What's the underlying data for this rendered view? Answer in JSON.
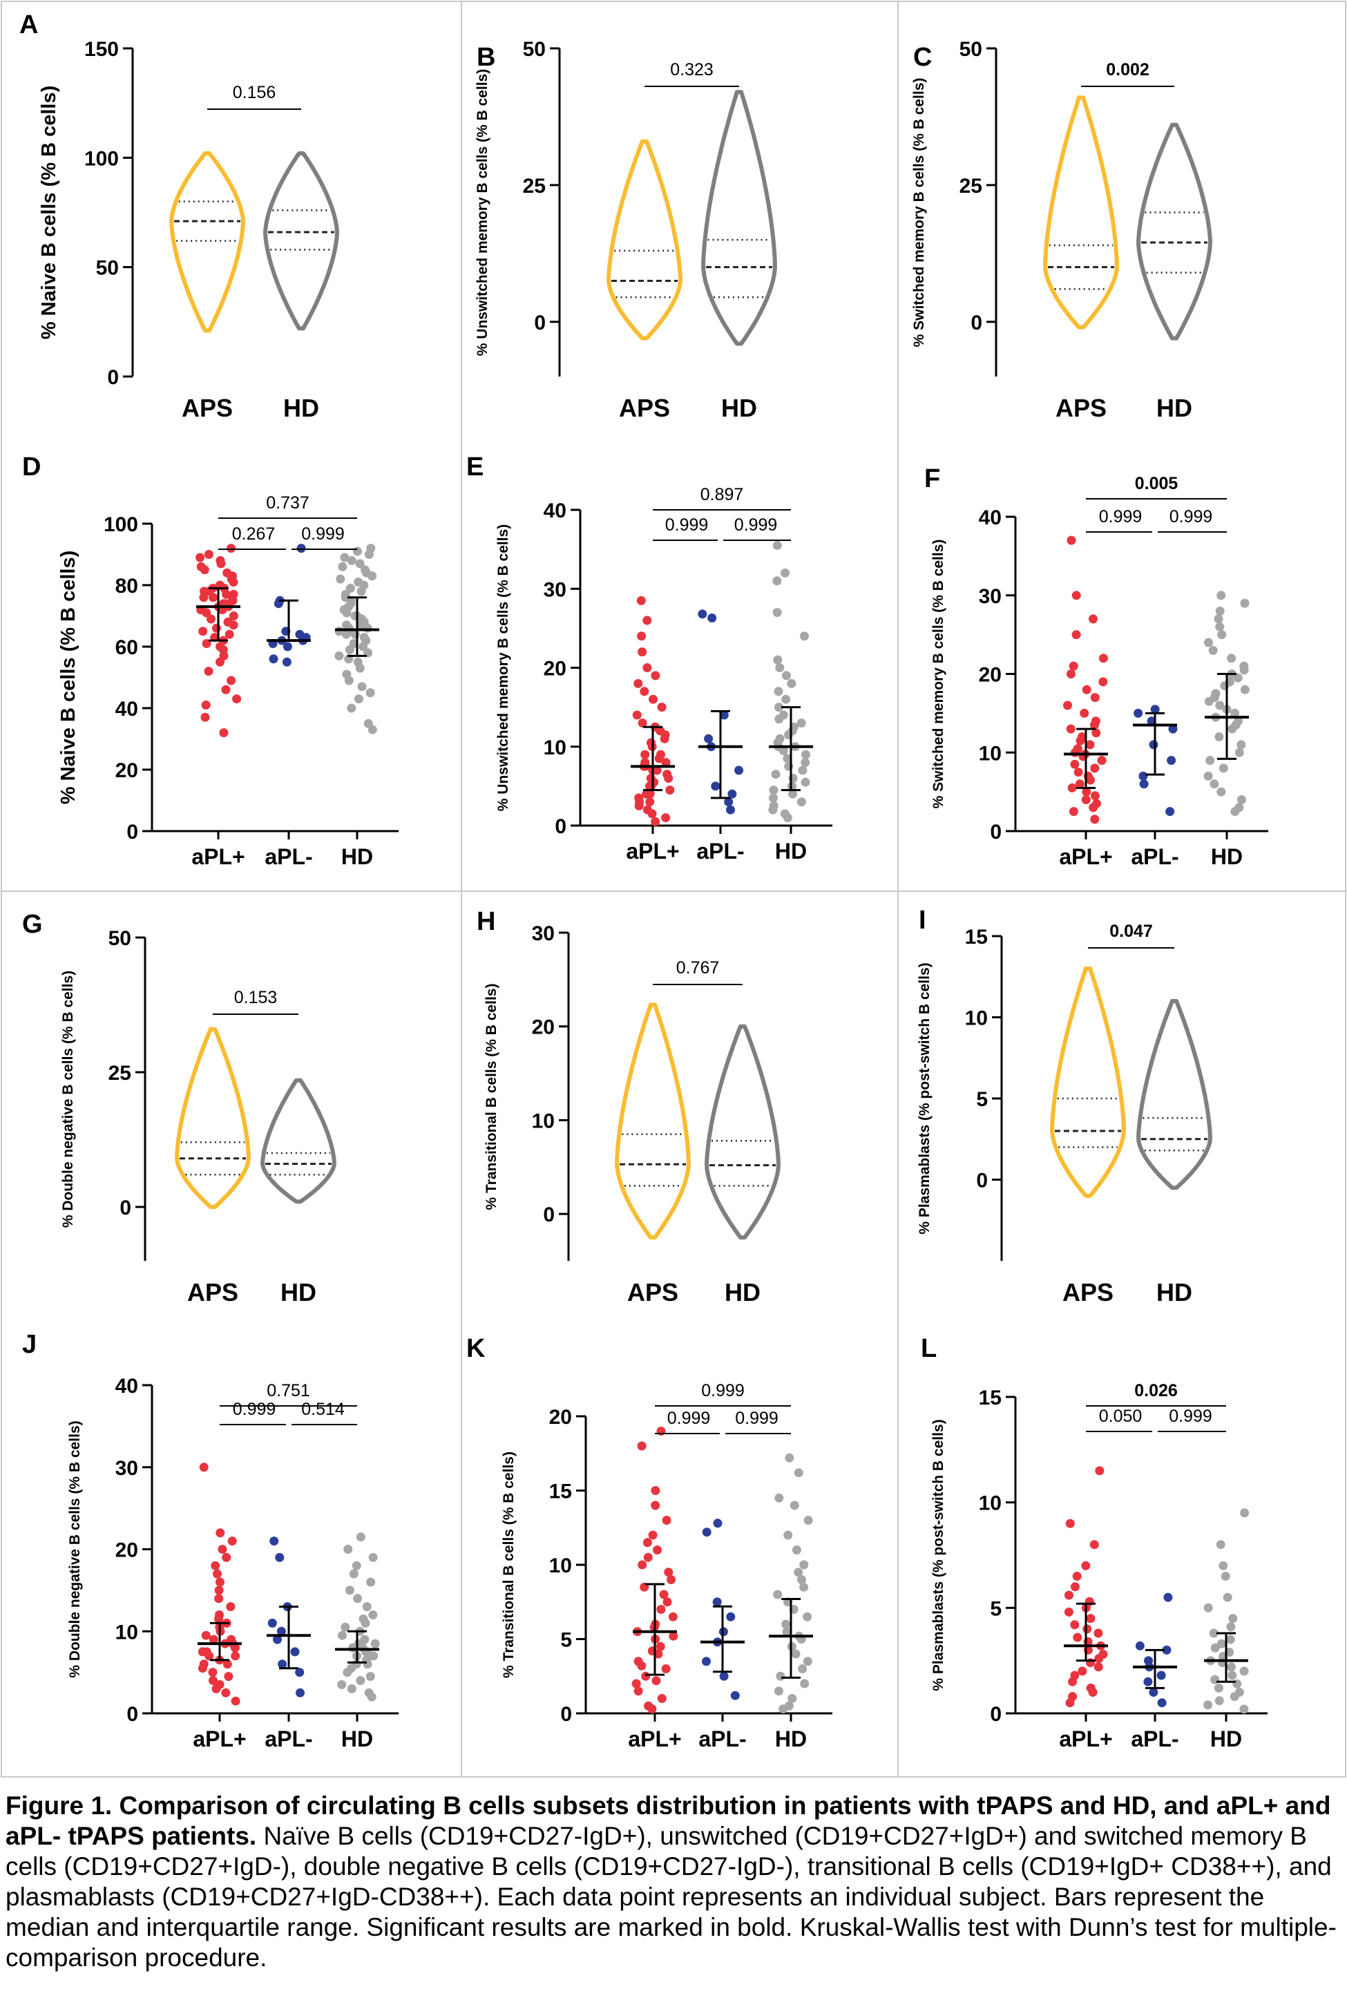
{
  "colors": {
    "aps": "#F9BC31",
    "hd_violin": "#7F7F7F",
    "apl_pos": "#E8343E",
    "apl_neg": "#2B3F9A",
    "hd_dots": "#A6A6A6"
  },
  "chart_data": [
    {
      "letter": "A",
      "type": "violin",
      "ylabel": "% Naive B cells (% B cells)",
      "ylim": [
        0,
        150
      ],
      "yticks": [
        0,
        50,
        100,
        150
      ],
      "categories": [
        "APS",
        "HD"
      ],
      "series": [
        {
          "name": "APS",
          "min": 21,
          "max": 102,
          "q1": 62,
          "median": 71,
          "q3": 80
        },
        {
          "name": "HD",
          "min": 22,
          "max": 102,
          "q1": 58,
          "median": 66,
          "q3": 76
        }
      ],
      "comparisons": [
        {
          "label": "0.156",
          "bold": false
        }
      ]
    },
    {
      "letter": "B",
      "type": "violin",
      "ylabel": "% Unswitched memory B cells (% B cells)",
      "ylim": [
        -10,
        50
      ],
      "yticks": [
        0,
        25,
        50
      ],
      "categories": [
        "APS",
        "HD"
      ],
      "series": [
        {
          "name": "APS",
          "min": -3,
          "max": 33,
          "q1": 4.5,
          "median": 7.5,
          "q3": 13
        },
        {
          "name": "HD",
          "min": -4,
          "max": 42,
          "q1": 4.5,
          "median": 10,
          "q3": 15
        }
      ],
      "comparisons": [
        {
          "label": "0.323",
          "bold": false
        }
      ]
    },
    {
      "letter": "C",
      "type": "violin",
      "ylabel": "% Switched memory B cells (% B cells)",
      "ylim": [
        -10,
        50
      ],
      "yticks": [
        0,
        25,
        50
      ],
      "categories": [
        "APS",
        "HD"
      ],
      "series": [
        {
          "name": "APS",
          "min": -1,
          "max": 41,
          "q1": 6,
          "median": 10,
          "q3": 14
        },
        {
          "name": "HD",
          "min": -3,
          "max": 36,
          "q1": 9,
          "median": 14.5,
          "q3": 20
        }
      ],
      "comparisons": [
        {
          "label": "0.002",
          "bold": true
        }
      ]
    },
    {
      "letter": "D",
      "type": "scatter",
      "ylabel": "% Naive B cells (% B cells)",
      "ylim": [
        0,
        100
      ],
      "yticks": [
        0,
        20,
        40,
        60,
        80,
        100
      ],
      "categories": [
        "aPL+",
        "aPL-",
        "HD"
      ],
      "groups": [
        {
          "name": "aPL+",
          "median": 73,
          "q1": 62,
          "q3": 79,
          "values": [
            32,
            37,
            41,
            43,
            46,
            49,
            52,
            55,
            57,
            59,
            60,
            61,
            62,
            63,
            64,
            65,
            66,
            67,
            68,
            69,
            70,
            71,
            72,
            72,
            73,
            73,
            74,
            74,
            75,
            75,
            76,
            76,
            77,
            77,
            78,
            78,
            79,
            79,
            80,
            81,
            82,
            83,
            84,
            85,
            86,
            87,
            88,
            89,
            90,
            92
          ]
        },
        {
          "name": "aPL-",
          "median": 62,
          "q1": 62,
          "q3": 75,
          "values": [
            55,
            56,
            60,
            61,
            62,
            62,
            63,
            64,
            65,
            74,
            75,
            92
          ]
        },
        {
          "name": "HD",
          "median": 65.5,
          "q1": 57,
          "q3": 76,
          "values": [
            33,
            35,
            40,
            43,
            45,
            47,
            49,
            51,
            53,
            55,
            56,
            57,
            58,
            59,
            60,
            61,
            62,
            63,
            64,
            64,
            65,
            65,
            66,
            66,
            67,
            67,
            68,
            69,
            70,
            70,
            71,
            72,
            73,
            74,
            75,
            76,
            77,
            78,
            79,
            80,
            81,
            82,
            83,
            84,
            85,
            86,
            87,
            88,
            89,
            90,
            91,
            92
          ]
        }
      ],
      "comparisons": [
        {
          "label": "0.267",
          "bold": false
        },
        {
          "label": "0.999",
          "bold": false
        },
        {
          "label": "0.737",
          "bold": false
        }
      ]
    },
    {
      "letter": "E",
      "type": "scatter",
      "ylabel": "% Unswitched memory B cells (% B cells)",
      "ylim": [
        0,
        40
      ],
      "yticks": [
        0,
        10,
        20,
        30,
        40
      ],
      "categories": [
        "aPL+",
        "aPL-",
        "HD"
      ],
      "groups": [
        {
          "name": "aPL+",
          "median": 7.5,
          "q1": 4.5,
          "q3": 12.5,
          "values": [
            0.5,
            1,
            1.5,
            2,
            2.5,
            3,
            3,
            3.5,
            4,
            4,
            4.5,
            5,
            5,
            5.5,
            6,
            6,
            6.5,
            7,
            7,
            7.5,
            7.5,
            8,
            8,
            8.5,
            9,
            9,
            10,
            10.5,
            11,
            11.5,
            12,
            12.5,
            13,
            14,
            15,
            16,
            17,
            18,
            19,
            20,
            22,
            24,
            26,
            28.5
          ]
        },
        {
          "name": "aPL-",
          "median": 10,
          "q1": 3.5,
          "q3": 14.5,
          "values": [
            2,
            3,
            4,
            5,
            7,
            10,
            11,
            14,
            26.3,
            26.8
          ]
        },
        {
          "name": "HD",
          "median": 10,
          "q1": 4.5,
          "q3": 15,
          "values": [
            1,
            1.5,
            2,
            2.5,
            3,
            3.5,
            4,
            4.5,
            5,
            5.5,
            6,
            6.5,
            7,
            7.5,
            8,
            8.5,
            9,
            9.5,
            10,
            10,
            10.5,
            11,
            11.5,
            12,
            12.5,
            13,
            13.5,
            14,
            15,
            16,
            17,
            18,
            19,
            20,
            21,
            24,
            27,
            31,
            32,
            35.5
          ]
        }
      ],
      "comparisons": [
        {
          "label": "0.999",
          "bold": false
        },
        {
          "label": "0.999",
          "bold": false
        },
        {
          "label": "0.897",
          "bold": false
        }
      ]
    },
    {
      "letter": "F",
      "type": "scatter",
      "ylabel": "% Switched memory B cells (% B cells)",
      "ylim": [
        0,
        40
      ],
      "yticks": [
        0,
        10,
        20,
        30,
        40
      ],
      "categories": [
        "aPL+",
        "aPL-",
        "HD"
      ],
      "groups": [
        {
          "name": "aPL+",
          "median": 9.8,
          "q1": 5.5,
          "q3": 13,
          "values": [
            1.5,
            2.5,
            3,
            3.5,
            4,
            4.5,
            5,
            5.5,
            6,
            6.5,
            7,
            7.5,
            8,
            8.5,
            9,
            9.5,
            9.8,
            10,
            10.5,
            11,
            11.5,
            12,
            12.5,
            13,
            13.5,
            14,
            15,
            16,
            17,
            18,
            19,
            20,
            21,
            22,
            25,
            27,
            30,
            37
          ]
        },
        {
          "name": "aPL-",
          "median": 13.5,
          "q1": 7.2,
          "q3": 15,
          "values": [
            2.5,
            6,
            7,
            9,
            11,
            13,
            14,
            15,
            15.5
          ]
        },
        {
          "name": "HD",
          "median": 14.5,
          "q1": 9.2,
          "q3": 20,
          "values": [
            2.5,
            3,
            4,
            5,
            6,
            7,
            8,
            9,
            10,
            11,
            12,
            13,
            13.5,
            14,
            14.5,
            15,
            15.5,
            16,
            16.5,
            17,
            17.5,
            18,
            18.5,
            19,
            19.5,
            20,
            20.5,
            21,
            22,
            23,
            24,
            25,
            26,
            27,
            28,
            29,
            30
          ]
        }
      ],
      "comparisons": [
        {
          "label": "0.999",
          "bold": false
        },
        {
          "label": "0.999",
          "bold": false
        },
        {
          "label": "0.005",
          "bold": true
        }
      ]
    },
    {
      "letter": "G",
      "type": "violin",
      "ylabel": "% Double negative B cells (% B cells)",
      "ylim": [
        -10,
        50
      ],
      "yticks": [
        0,
        25,
        50
      ],
      "categories": [
        "APS",
        "HD"
      ],
      "series": [
        {
          "name": "APS",
          "min": 0,
          "max": 33,
          "q1": 6,
          "median": 9,
          "q3": 12
        },
        {
          "name": "HD",
          "min": 1,
          "max": 23.5,
          "q1": 6,
          "median": 8,
          "q3": 10
        }
      ],
      "comparisons": [
        {
          "label": "0.153",
          "bold": false
        }
      ]
    },
    {
      "letter": "H",
      "type": "violin",
      "ylabel": "% Transitional B cells (% B cells)",
      "ylim": [
        -5,
        30
      ],
      "yticks": [
        0,
        10,
        20,
        30
      ],
      "categories": [
        "APS",
        "HD"
      ],
      "series": [
        {
          "name": "APS",
          "min": -2.5,
          "max": 22.3,
          "q1": 3,
          "median": 5.3,
          "q3": 8.5
        },
        {
          "name": "HD",
          "min": -2.5,
          "max": 20,
          "q1": 3,
          "median": 5.2,
          "q3": 7.8
        }
      ],
      "comparisons": [
        {
          "label": "0.767",
          "bold": false
        }
      ]
    },
    {
      "letter": "I",
      "type": "violin",
      "ylabel": "% Plasmablasts (% post-switch B cells)",
      "ylim": [
        -5,
        15
      ],
      "yticks": [
        0,
        5,
        10,
        15
      ],
      "categories": [
        "APS",
        "HD"
      ],
      "series": [
        {
          "name": "APS",
          "min": -1,
          "max": 13,
          "q1": 2,
          "median": 3,
          "q3": 5
        },
        {
          "name": "HD",
          "min": -0.5,
          "max": 11,
          "q1": 1.8,
          "median": 2.5,
          "q3": 3.8
        }
      ],
      "comparisons": [
        {
          "label": "0.047",
          "bold": true
        }
      ]
    },
    {
      "letter": "J",
      "type": "scatter",
      "ylabel": "% Double negative B cells (% B cells)",
      "ylim": [
        0,
        40
      ],
      "yticks": [
        0,
        10,
        20,
        30,
        40
      ],
      "categories": [
        "aPL+",
        "aPL-",
        "HD"
      ],
      "groups": [
        {
          "name": "aPL+",
          "median": 8.5,
          "q1": 6.5,
          "q3": 11,
          "values": [
            1.5,
            2.5,
            3,
            3.5,
            4,
            4.5,
            5,
            5.5,
            6,
            6,
            6.5,
            7,
            7,
            7.5,
            7.5,
            8,
            8,
            8.5,
            8.5,
            9,
            9,
            9.5,
            10,
            10.5,
            11,
            11.5,
            12,
            13,
            14,
            15,
            16,
            17,
            18,
            19,
            20,
            21,
            22,
            30
          ]
        },
        {
          "name": "aPL-",
          "median": 9.5,
          "q1": 5.5,
          "q3": 13,
          "values": [
            2.5,
            5,
            6,
            7.5,
            9,
            10,
            11,
            13,
            19,
            21
          ]
        },
        {
          "name": "HD",
          "median": 7.8,
          "q1": 6.2,
          "q3": 10,
          "values": [
            2,
            2.5,
            3,
            3.5,
            4,
            4.5,
            5,
            5.5,
            6,
            6,
            6.5,
            7,
            7,
            7.5,
            7.5,
            8,
            8,
            8.5,
            8.5,
            9,
            9.5,
            10,
            10.5,
            11,
            11.5,
            12,
            13,
            14,
            15,
            16,
            17,
            18,
            19,
            20,
            21.5
          ]
        }
      ],
      "comparisons": [
        {
          "label": "0.999",
          "bold": false
        },
        {
          "label": "0.514",
          "bold": false
        },
        {
          "label": "0.751",
          "bold": false
        }
      ]
    },
    {
      "letter": "K",
      "type": "scatter",
      "ylabel": "% Transitional B cells (% B cells)",
      "ylim": [
        0,
        20
      ],
      "yticks": [
        0,
        5,
        10,
        15,
        20
      ],
      "categories": [
        "aPL+",
        "aPL-",
        "HD"
      ],
      "groups": [
        {
          "name": "aPL+",
          "median": 5.5,
          "q1": 2.6,
          "q3": 8.7,
          "values": [
            0.3,
            0.5,
            1,
            1.5,
            2,
            2.2,
            2.5,
            3,
            3.2,
            3.5,
            4,
            4.2,
            4.5,
            5,
            5.2,
            5.5,
            5.8,
            6,
            6.5,
            7,
            7.5,
            8,
            8.5,
            9,
            9.5,
            10,
            10.5,
            11,
            11.5,
            12,
            13,
            14,
            15,
            18,
            19
          ]
        },
        {
          "name": "aPL-",
          "median": 4.8,
          "q1": 2.8,
          "q3": 7.2,
          "values": [
            1.2,
            2.5,
            3.5,
            4.8,
            5.5,
            6.5,
            7.5,
            12.2,
            12.8
          ]
        },
        {
          "name": "HD",
          "median": 5.2,
          "q1": 2.4,
          "q3": 7.7,
          "values": [
            0.3,
            0.5,
            1,
            1.5,
            2,
            2.5,
            3,
            3.5,
            4,
            4.5,
            5,
            5.2,
            5.5,
            6,
            6.5,
            7,
            7.5,
            8,
            8.5,
            9,
            9.5,
            10,
            11,
            12,
            13,
            14,
            14.5,
            16.2,
            17.2
          ]
        }
      ],
      "comparisons": [
        {
          "label": "0.999",
          "bold": false
        },
        {
          "label": "0.999",
          "bold": false
        },
        {
          "label": "0.999",
          "bold": false
        }
      ]
    },
    {
      "letter": "L",
      "type": "scatter",
      "ylabel": "% Plasmablasts (% post-switch B cells)",
      "ylim": [
        0,
        15
      ],
      "yticks": [
        0,
        5,
        10,
        15
      ],
      "categories": [
        "aPL+",
        "aPL-",
        "HD"
      ],
      "groups": [
        {
          "name": "aPL+",
          "median": 3.2,
          "q1": 2.5,
          "q3": 5.2,
          "values": [
            0.5,
            0.8,
            1,
            1.2,
            1.5,
            1.8,
            2,
            2.2,
            2.4,
            2.6,
            2.8,
            3,
            3.2,
            3.4,
            3.6,
            3.8,
            4,
            4.2,
            4.5,
            4.8,
            5,
            5.3,
            5.6,
            6,
            6.5,
            7,
            8,
            9,
            11.5
          ]
        },
        {
          "name": "aPL-",
          "median": 2.2,
          "q1": 1.2,
          "q3": 3,
          "values": [
            0.5,
            1,
            1.5,
            1.8,
            2.2,
            2.5,
            3,
            3.2,
            5.5
          ]
        },
        {
          "name": "HD",
          "median": 2.5,
          "q1": 1.5,
          "q3": 3.8,
          "values": [
            0.2,
            0.4,
            0.6,
            0.8,
            1,
            1.2,
            1.4,
            1.6,
            1.8,
            2,
            2.2,
            2.4,
            2.5,
            2.7,
            2.9,
            3.1,
            3.3,
            3.5,
            3.8,
            4.1,
            4.5,
            5,
            5.5,
            6.5,
            7,
            8,
            9.5
          ]
        }
      ],
      "comparisons": [
        {
          "label": "0.050",
          "bold": false
        },
        {
          "label": "0.999",
          "bold": false
        },
        {
          "label": "0.026",
          "bold": true
        }
      ]
    }
  ],
  "caption": {
    "title": "Figure 1. Comparison of circulating B cells subsets distribution in patients with tPAPS and HD, and aPL+ and aPL- tPAPS patients.",
    "body": "Naïve B cells (CD19+CD27-IgD+), unswitched (CD19+CD27+IgD+) and switched memory B cells (CD19+CD27+IgD-), double negative B cells (CD19+CD27-IgD-), transitional B cells (CD19+IgD+ CD38++), and plasmablasts (CD19+CD27+IgD-CD38++). Each data point represents an individual subject. Bars represent the median and interquartile range. Significant results are marked in bold. Kruskal-Wallis test with Dunn’s test for multiple-comparison procedure."
  }
}
